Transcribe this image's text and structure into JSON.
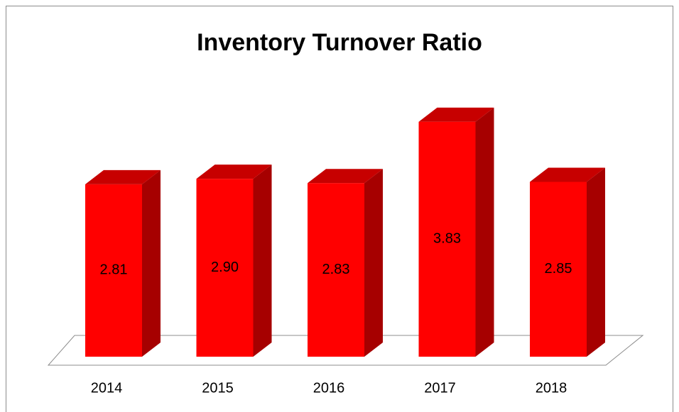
{
  "chart_data": {
    "type": "bar3d",
    "title": "Inventory Turnover Ratio",
    "categories": [
      "2014",
      "2015",
      "2016",
      "2017",
      "2018"
    ],
    "values": [
      2.81,
      2.9,
      2.83,
      3.83,
      2.85
    ],
    "value_labels": [
      "2.81",
      "2.90",
      "2.83",
      "3.83",
      "2.85"
    ],
    "color": "#ff0000"
  }
}
